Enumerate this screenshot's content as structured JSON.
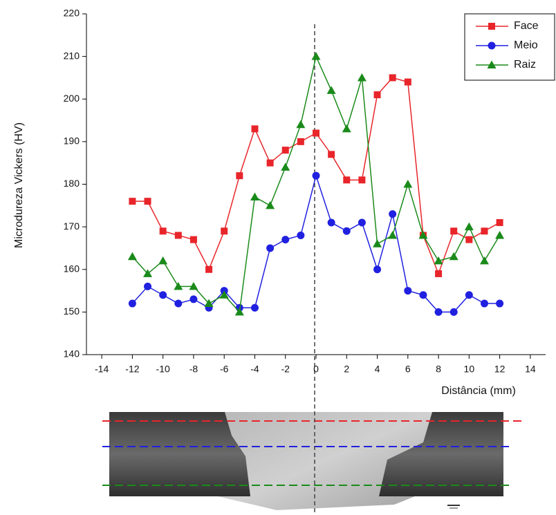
{
  "chart_data": {
    "type": "line",
    "x": [
      -12,
      -11,
      -10,
      -9,
      -8,
      -7,
      -6,
      -5,
      -4,
      -3,
      -2,
      -1,
      0,
      1,
      2,
      3,
      4,
      5,
      6,
      7,
      8,
      9,
      10,
      11,
      12
    ],
    "series": [
      {
        "name": "Face",
        "color": "#e8252a",
        "marker": "square",
        "values": [
          176,
          176,
          169,
          168,
          167,
          160,
          169,
          182,
          193,
          185,
          188,
          190,
          192,
          187,
          181,
          181,
          201,
          205,
          204,
          168,
          159,
          169,
          167,
          169,
          171
        ]
      },
      {
        "name": "Meio",
        "color": "#2020e0",
        "marker": "circle",
        "values": [
          152,
          156,
          154,
          152,
          153,
          151,
          155,
          151,
          151,
          165,
          167,
          168,
          182,
          171,
          169,
          171,
          160,
          173,
          155,
          154,
          150,
          150,
          154,
          152,
          152
        ]
      },
      {
        "name": "Raiz",
        "color": "#1a8a1a",
        "marker": "triangle",
        "values": [
          163,
          159,
          162,
          156,
          156,
          152,
          154,
          150,
          177,
          175,
          184,
          194,
          210,
          202,
          193,
          205,
          166,
          168,
          180,
          168,
          162,
          163,
          170,
          162,
          168
        ]
      }
    ],
    "xlabel": "Distância (mm)",
    "ylabel": "Microdureza Vickers (HV)",
    "xlim": [
      -15,
      15
    ],
    "xticks": [
      -14,
      -12,
      -10,
      -8,
      -6,
      -4,
      -2,
      0,
      2,
      4,
      6,
      8,
      10,
      12,
      14
    ],
    "ylim": [
      140,
      220
    ],
    "yticks": [
      140,
      150,
      160,
      170,
      180,
      190,
      200,
      210,
      220
    ],
    "legend": "top-right"
  }
}
